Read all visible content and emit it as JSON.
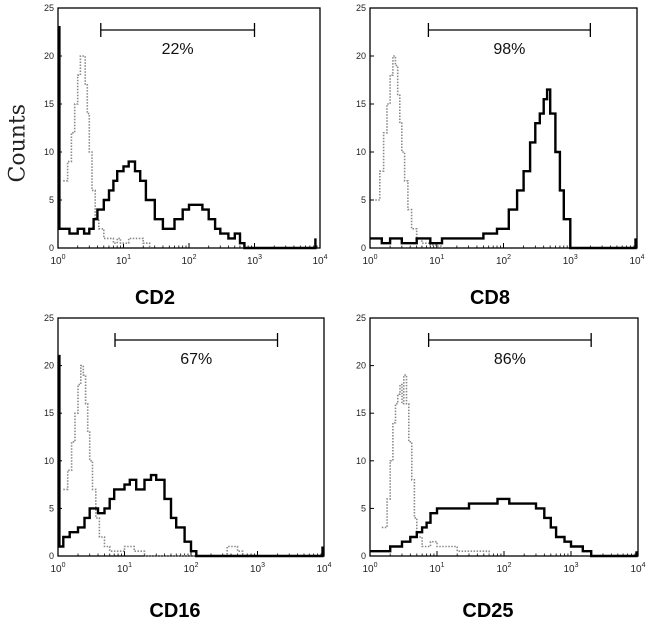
{
  "figure": {
    "ylabel": "Counts"
  },
  "chart_data": [
    {
      "type": "line",
      "title": "CD2",
      "xlabel": "CD2",
      "ylabel": "Counts",
      "x_scale": "log",
      "xlim": [
        1,
        10000
      ],
      "ylim": [
        0,
        25
      ],
      "x_ticks": [
        "10^0",
        "10^1",
        "10^2",
        "10^3",
        "10^4"
      ],
      "y_ticks": [
        "0",
        "5",
        "10",
        "15",
        "20",
        "25"
      ],
      "gate": {
        "from": 4.5,
        "to": 1000,
        "label": "22%"
      },
      "series": [
        {
          "style": "dotted-control",
          "x": [
            1.2,
            1.4,
            1.6,
            1.8,
            2.0,
            2.2,
            2.4,
            2.6,
            2.8,
            3.0,
            3.3,
            3.7,
            4.2,
            5.0,
            6.0,
            7.0,
            8.0,
            9.0,
            10.0,
            12.0,
            14.0,
            16.0,
            20.0,
            25.0
          ],
          "y": [
            7,
            9,
            12,
            15,
            18,
            20,
            20,
            17,
            14,
            10,
            6,
            3,
            2,
            1,
            1,
            0.5,
            1,
            0.5,
            0.5,
            1,
            1,
            1,
            0.5,
            0
          ]
        },
        {
          "style": "solid-sample",
          "x": [
            1.0,
            1.05,
            1.2,
            1.5,
            2.0,
            2.5,
            3.0,
            3.5,
            4.0,
            5.0,
            6.0,
            7.0,
            8.0,
            10.0,
            12.0,
            15.0,
            18.0,
            22.0,
            30.0,
            40.0,
            50.0,
            60.0,
            80.0,
            100.0,
            130.0,
            160.0,
            200.0,
            250.0,
            300.0,
            400.0,
            500.0,
            600.0,
            700.0,
            8000.0,
            8500.0
          ],
          "y": [
            23,
            2,
            2,
            1.5,
            2,
            1.5,
            2,
            3,
            4,
            5,
            6,
            7,
            8,
            8.5,
            9,
            8,
            7,
            5,
            3,
            2,
            2,
            3,
            4,
            4.5,
            4.5,
            4,
            3,
            2,
            1.5,
            1,
            1.5,
            0.5,
            0,
            0,
            1
          ]
        }
      ]
    },
    {
      "type": "line",
      "title": "CD8",
      "xlabel": "CD8",
      "ylabel": "",
      "x_scale": "log",
      "xlim": [
        1,
        10000
      ],
      "ylim": [
        0,
        25
      ],
      "x_ticks": [
        "10^0",
        "10^1",
        "10^2",
        "10^3",
        "10^4"
      ],
      "y_ticks": [
        "0",
        "5",
        "10",
        "15",
        "20",
        "25"
      ],
      "gate": {
        "from": 7.5,
        "to": 2000,
        "label": "98%"
      },
      "series": [
        {
          "style": "dotted-control",
          "x": [
            1.2,
            1.4,
            1.6,
            1.8,
            2.0,
            2.2,
            2.4,
            2.6,
            2.8,
            3.0,
            3.3,
            3.7,
            4.2,
            5.0,
            6.0,
            7.0,
            8.0,
            9.0,
            10.0,
            12.0
          ],
          "y": [
            5,
            8,
            12,
            15,
            18,
            20,
            19,
            16,
            13,
            10,
            7,
            4,
            2,
            1,
            0.5,
            0.5,
            0.3,
            0.3,
            0.2,
            0
          ]
        },
        {
          "style": "solid-sample",
          "x": [
            1.0,
            1.5,
            2.0,
            3.0,
            5.0,
            8.0,
            12.0,
            20.0,
            30.0,
            50.0,
            80.0,
            120.0,
            160.0,
            200.0,
            250.0,
            300.0,
            350.0,
            400.0,
            450.0,
            500.0,
            600.0,
            700.0,
            800.0,
            1000.0,
            9000.0,
            9500.0
          ],
          "y": [
            1,
            0.5,
            1,
            0.5,
            1,
            0.5,
            1,
            1,
            1,
            1.5,
            2,
            4,
            6,
            8,
            11,
            13,
            14,
            15.5,
            16.5,
            14,
            10,
            6,
            3,
            0,
            0,
            1
          ]
        }
      ]
    },
    {
      "type": "line",
      "title": "CD16",
      "xlabel": "CD16",
      "ylabel": "",
      "x_scale": "log",
      "xlim": [
        1,
        10000
      ],
      "ylim": [
        0,
        25
      ],
      "x_ticks": [
        "10^0",
        "10^1",
        "10^2",
        "10^3",
        "10^4"
      ],
      "y_ticks": [
        "0",
        "5",
        "10",
        "15",
        "20",
        "25"
      ],
      "gate": {
        "from": 7.2,
        "to": 2000,
        "label": "67%"
      },
      "series": [
        {
          "style": "dotted-control",
          "x": [
            1.2,
            1.4,
            1.6,
            1.8,
            2.0,
            2.2,
            2.4,
            2.6,
            2.8,
            3.0,
            3.3,
            3.7,
            4.2,
            5.0,
            6.0,
            7.0,
            8.0,
            10.0,
            14.0,
            20.0,
            300.0,
            350.0,
            400.0,
            500.0,
            600.0
          ],
          "y": [
            7,
            9,
            12,
            15,
            18,
            20,
            19,
            16,
            13,
            10,
            7,
            4,
            2,
            1,
            0.5,
            0.5,
            0.5,
            1,
            0.5,
            0,
            0,
            1,
            1,
            0.5,
            0
          ]
        },
        {
          "style": "solid-sample",
          "x": [
            1.0,
            1.05,
            1.2,
            1.5,
            2.0,
            2.5,
            3.0,
            3.5,
            4.0,
            5.0,
            6.0,
            7.0,
            8.0,
            10.0,
            12.0,
            15.0,
            20.0,
            25.0,
            30.0,
            40.0,
            50.0,
            60.0,
            80.0,
            100.0,
            120.0,
            150.0,
            9000.0,
            9500.0
          ],
          "y": [
            21,
            1,
            2,
            2.5,
            3,
            4,
            5,
            5,
            4.5,
            5,
            6,
            7,
            7,
            7.5,
            8,
            7,
            8,
            8.5,
            8,
            6,
            4,
            3,
            1.5,
            0.5,
            0,
            0,
            0,
            1
          ]
        }
      ]
    },
    {
      "type": "line",
      "title": "CD25",
      "xlabel": "CD25",
      "ylabel": "",
      "x_scale": "log",
      "xlim": [
        1,
        10000
      ],
      "ylim": [
        0,
        25
      ],
      "x_ticks": [
        "10^0",
        "10^1",
        "10^2",
        "10^3",
        "10^4"
      ],
      "y_ticks": [
        "0",
        "5",
        "10",
        "15",
        "20",
        "25"
      ],
      "gate": {
        "from": 7.5,
        "to": 2000,
        "label": "86%"
      },
      "series": [
        {
          "style": "dotted-control",
          "x": [
            1.5,
            1.8,
            2.0,
            2.2,
            2.4,
            2.6,
            2.8,
            3.0,
            3.2,
            3.5,
            3.8,
            4.2,
            4.6,
            5.0,
            6.0,
            7.0,
            8.0,
            10.0,
            14.0,
            20.0,
            30.0,
            40.0,
            60.0
          ],
          "y": [
            3,
            6,
            10,
            14,
            16,
            17,
            18,
            16,
            19,
            16,
            12,
            8,
            4,
            2,
            1,
            1,
            1.5,
            1,
            1,
            0.5,
            0.5,
            0.5,
            0
          ]
        },
        {
          "style": "solid-sample",
          "x": [
            1.0,
            1.5,
            2.0,
            3.0,
            4.0,
            5.0,
            6.0,
            7.0,
            8.0,
            10.0,
            15.0,
            20.0,
            30.0,
            50.0,
            80.0,
            120.0,
            200.0,
            300.0,
            400.0,
            500.0,
            600.0,
            800.0,
            1000.0,
            1200.0,
            1500.0,
            2000.0,
            9000.0,
            9500.0
          ],
          "y": [
            0.5,
            0.5,
            1,
            1.5,
            2,
            2.5,
            3,
            3.5,
            4.5,
            5,
            5,
            5,
            5.5,
            5.5,
            6,
            5.5,
            5.5,
            5,
            4,
            3,
            2,
            1.5,
            1,
            1,
            0.5,
            0,
            0,
            0.5
          ]
        }
      ]
    }
  ]
}
